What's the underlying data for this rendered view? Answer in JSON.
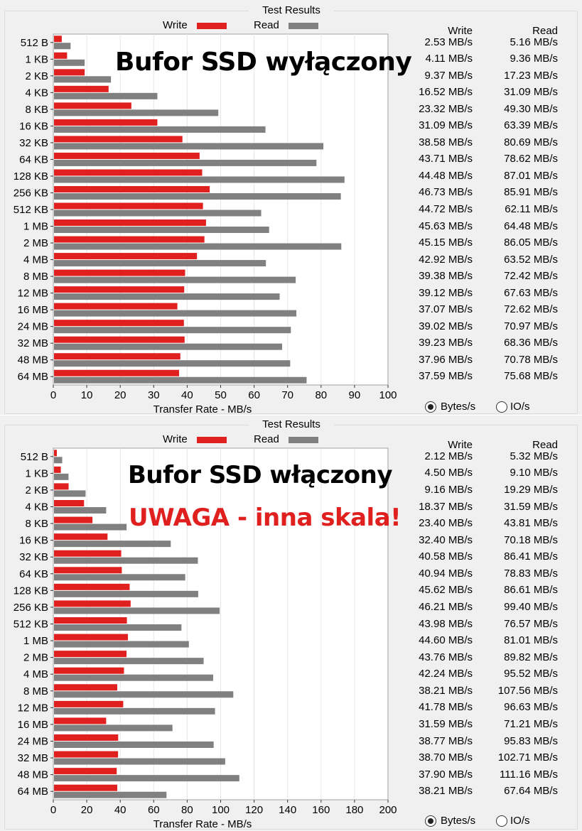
{
  "panels": [
    {
      "title": "Test Results",
      "legend": {
        "write_label": "Write",
        "read_label": "Read"
      },
      "overlay_lines": [
        "Bufor SSD wyłączony"
      ],
      "table": {
        "write_header": "Write",
        "read_header": "Read",
        "rows": [
          {
            "write": "2.53 MB/s",
            "read": "5.16 MB/s"
          },
          {
            "write": "4.11 MB/s",
            "read": "9.36 MB/s"
          },
          {
            "write": "9.37 MB/s",
            "read": "17.23 MB/s"
          },
          {
            "write": "16.52 MB/s",
            "read": "31.09 MB/s"
          },
          {
            "write": "23.32 MB/s",
            "read": "49.30 MB/s"
          },
          {
            "write": "31.09 MB/s",
            "read": "63.39 MB/s"
          },
          {
            "write": "38.58 MB/s",
            "read": "80.69 MB/s"
          },
          {
            "write": "43.71 MB/s",
            "read": "78.62 MB/s"
          },
          {
            "write": "44.48 MB/s",
            "read": "87.01 MB/s"
          },
          {
            "write": "46.73 MB/s",
            "read": "85.91 MB/s"
          },
          {
            "write": "44.72 MB/s",
            "read": "62.11 MB/s"
          },
          {
            "write": "45.63 MB/s",
            "read": "64.48 MB/s"
          },
          {
            "write": "45.15 MB/s",
            "read": "86.05 MB/s"
          },
          {
            "write": "42.92 MB/s",
            "read": "63.52 MB/s"
          },
          {
            "write": "39.38 MB/s",
            "read": "72.42 MB/s"
          },
          {
            "write": "39.12 MB/s",
            "read": "67.63 MB/s"
          },
          {
            "write": "37.07 MB/s",
            "read": "72.62 MB/s"
          },
          {
            "write": "39.02 MB/s",
            "read": "70.97 MB/s"
          },
          {
            "write": "39.23 MB/s",
            "read": "68.36 MB/s"
          },
          {
            "write": "37.96 MB/s",
            "read": "70.78 MB/s"
          },
          {
            "write": "37.59 MB/s",
            "read": "75.68 MB/s"
          }
        ]
      },
      "radio": {
        "bytes_label": "Bytes/s",
        "io_label": "IO/s",
        "selected": "bytes"
      },
      "chart_data": {
        "type": "bar",
        "orientation": "horizontal",
        "title": "Test Results",
        "xlabel": "Transfer Rate - MB/s",
        "ylabel": "",
        "xlim": [
          0,
          100
        ],
        "xticks": [
          0,
          10,
          20,
          30,
          40,
          50,
          60,
          70,
          80,
          90,
          100
        ],
        "grid": true,
        "legend_position": "top",
        "categories": [
          "512 B",
          "1 KB",
          "2 KB",
          "4 KB",
          "8 KB",
          "16 KB",
          "32 KB",
          "64 KB",
          "128 KB",
          "256 KB",
          "512 KB",
          "1 MB",
          "2 MB",
          "4 MB",
          "8 MB",
          "12 MB",
          "16 MB",
          "24 MB",
          "32 MB",
          "48 MB",
          "64 MB"
        ],
        "series": [
          {
            "name": "Write",
            "color": "#e0201f",
            "values": [
              2.53,
              4.11,
              9.37,
              16.52,
              23.32,
              31.09,
              38.58,
              43.71,
              44.48,
              46.73,
              44.72,
              45.63,
              45.15,
              42.92,
              39.38,
              39.12,
              37.07,
              39.02,
              39.23,
              37.96,
              37.59
            ]
          },
          {
            "name": "Read",
            "color": "#808080",
            "values": [
              5.16,
              9.36,
              17.23,
              31.09,
              49.3,
              63.39,
              80.69,
              78.62,
              87.01,
              85.91,
              62.11,
              64.48,
              86.05,
              63.52,
              72.42,
              67.63,
              72.62,
              70.97,
              68.36,
              70.78,
              75.68
            ]
          }
        ]
      }
    },
    {
      "title": "Test Results",
      "legend": {
        "write_label": "Write",
        "read_label": "Read"
      },
      "overlay_lines": [
        "Bufor SSD włączony",
        "UWAGA - inna skala!"
      ],
      "table": {
        "write_header": "Write",
        "read_header": "Read",
        "rows": [
          {
            "write": "2.12 MB/s",
            "read": "5.32 MB/s"
          },
          {
            "write": "4.50 MB/s",
            "read": "9.10 MB/s"
          },
          {
            "write": "9.16 MB/s",
            "read": "19.29 MB/s"
          },
          {
            "write": "18.37 MB/s",
            "read": "31.59 MB/s"
          },
          {
            "write": "23.40 MB/s",
            "read": "43.81 MB/s"
          },
          {
            "write": "32.40 MB/s",
            "read": "70.18 MB/s"
          },
          {
            "write": "40.58 MB/s",
            "read": "86.41 MB/s"
          },
          {
            "write": "40.94 MB/s",
            "read": "78.83 MB/s"
          },
          {
            "write": "45.62 MB/s",
            "read": "86.61 MB/s"
          },
          {
            "write": "46.21 MB/s",
            "read": "99.40 MB/s"
          },
          {
            "write": "43.98 MB/s",
            "read": "76.57 MB/s"
          },
          {
            "write": "44.60 MB/s",
            "read": "81.01 MB/s"
          },
          {
            "write": "43.76 MB/s",
            "read": "89.82 MB/s"
          },
          {
            "write": "42.24 MB/s",
            "read": "95.52 MB/s"
          },
          {
            "write": "38.21 MB/s",
            "read": "107.56 MB/s"
          },
          {
            "write": "41.78 MB/s",
            "read": "96.63 MB/s"
          },
          {
            "write": "31.59 MB/s",
            "read": "71.21 MB/s"
          },
          {
            "write": "38.77 MB/s",
            "read": "95.83 MB/s"
          },
          {
            "write": "38.70 MB/s",
            "read": "102.71 MB/s"
          },
          {
            "write": "37.90 MB/s",
            "read": "111.16 MB/s"
          },
          {
            "write": "38.21 MB/s",
            "read": "67.64 MB/s"
          }
        ]
      },
      "radio": {
        "bytes_label": "Bytes/s",
        "io_label": "IO/s",
        "selected": "bytes"
      },
      "chart_data": {
        "type": "bar",
        "orientation": "horizontal",
        "title": "Test Results",
        "xlabel": "Transfer Rate - MB/s",
        "ylabel": "",
        "xlim": [
          0,
          200
        ],
        "xticks": [
          0,
          20,
          40,
          60,
          80,
          100,
          120,
          140,
          160,
          180,
          200
        ],
        "grid": true,
        "legend_position": "top",
        "categories": [
          "512 B",
          "1 KB",
          "2 KB",
          "4 KB",
          "8 KB",
          "16 KB",
          "32 KB",
          "64 KB",
          "128 KB",
          "256 KB",
          "512 KB",
          "1 MB",
          "2 MB",
          "4 MB",
          "8 MB",
          "12 MB",
          "16 MB",
          "24 MB",
          "32 MB",
          "48 MB",
          "64 MB"
        ],
        "series": [
          {
            "name": "Write",
            "color": "#e0201f",
            "values": [
              2.12,
              4.5,
              9.16,
              18.37,
              23.4,
              32.4,
              40.58,
              40.94,
              45.62,
              46.21,
              43.98,
              44.6,
              43.76,
              42.24,
              38.21,
              41.78,
              31.59,
              38.77,
              38.7,
              37.9,
              38.21
            ]
          },
          {
            "name": "Read",
            "color": "#808080",
            "values": [
              5.32,
              9.1,
              19.29,
              31.59,
              43.81,
              70.18,
              86.41,
              78.83,
              86.61,
              99.4,
              76.57,
              81.01,
              89.82,
              95.52,
              107.56,
              96.63,
              71.21,
              95.83,
              102.71,
              111.16,
              67.64
            ]
          }
        ]
      }
    }
  ],
  "colors": {
    "write": "#e0201f",
    "read": "#808080",
    "overlay_title": "#000000",
    "overlay_warning": "#e0201f",
    "panel_bg": "#f0f0f0"
  }
}
